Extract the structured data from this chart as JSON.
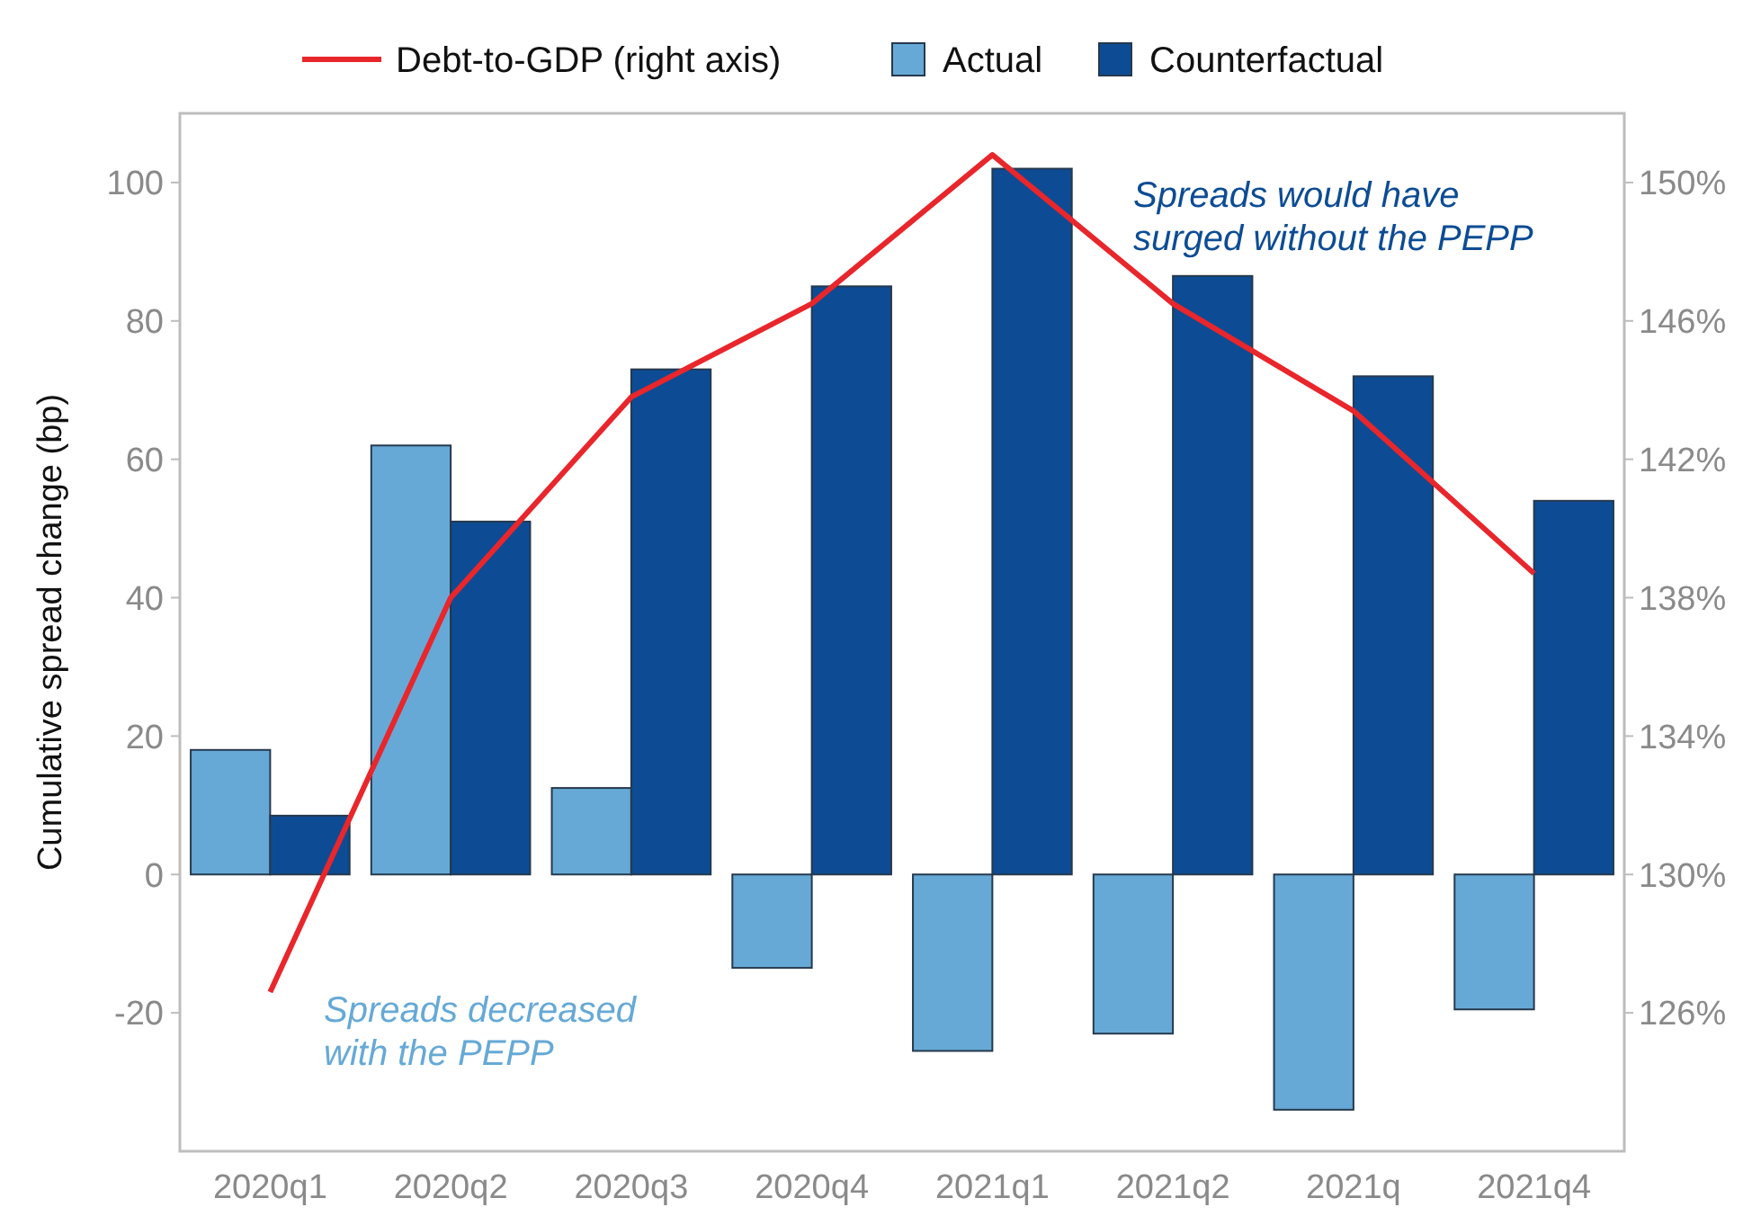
{
  "chart_data": {
    "type": "bar",
    "ylabel": "Cumulative spread change (bp)",
    "categories": [
      "2020q1",
      "2020q2",
      "2020q3",
      "2020q4",
      "2021q1",
      "2021q2",
      "2021q",
      "2021q4"
    ],
    "series": [
      {
        "name": "Debt-to-GDP (right axis)",
        "type": "line",
        "axis": "y2",
        "color": "#e8262b",
        "values": [
          126.6,
          138,
          143.8,
          146.5,
          150.8,
          146.5,
          143.4,
          138.7
        ]
      },
      {
        "name": "Actual",
        "color": "#66a9d6",
        "values": [
          18,
          62,
          12.5,
          -13.5,
          -25.5,
          -23,
          -34,
          -19.5
        ]
      },
      {
        "name": "Counterfactual",
        "color": "#0d4c94",
        "values": [
          8.5,
          51,
          73,
          85,
          102,
          86.5,
          72,
          54
        ]
      }
    ],
    "ylim": [
      -40,
      110
    ],
    "yticks": [
      -20,
      0,
      20,
      40,
      60,
      80,
      100
    ],
    "y2lim": [
      122,
      152
    ],
    "y2ticks": [
      {
        "value": 126,
        "label": "126%"
      },
      {
        "value": 130,
        "label": "130%"
      },
      {
        "value": 134,
        "label": "134%"
      },
      {
        "value": 138,
        "label": "138%"
      },
      {
        "value": 142,
        "label": "142%"
      },
      {
        "value": 146,
        "label": "146%"
      },
      {
        "value": 150,
        "label": "150%"
      }
    ],
    "annotations": [
      "Spreads would have surged without the PEPP",
      "Spreads decreased with the PEPP"
    ],
    "legend": "top",
    "grid": false,
    "marker": "none",
    "line_style": "solid"
  }
}
